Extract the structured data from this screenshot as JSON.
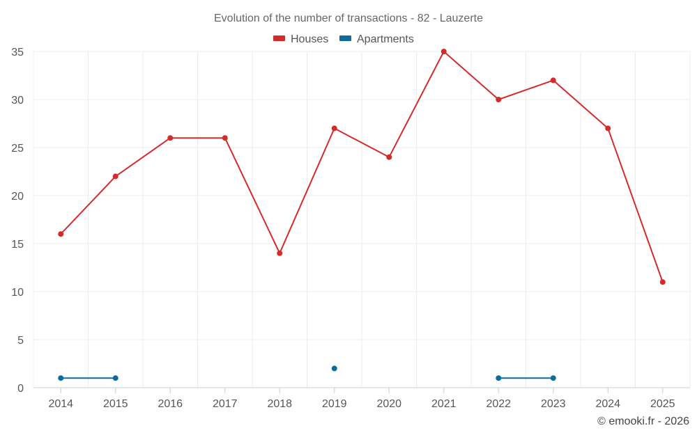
{
  "chart_data": {
    "type": "line",
    "title": "Evolution of the number of transactions - 82 - Lauzerte",
    "xlabel": "",
    "ylabel": "",
    "categories": [
      "2014",
      "2015",
      "2016",
      "2017",
      "2018",
      "2019",
      "2020",
      "2021",
      "2022",
      "2023",
      "2024",
      "2025"
    ],
    "ylim": [
      0,
      35
    ],
    "yticks": [
      0,
      5,
      10,
      15,
      20,
      25,
      30,
      35
    ],
    "grid": true,
    "legend_position": "top-center",
    "series": [
      {
        "name": "Houses",
        "color": "#d42a2a",
        "values": [
          16,
          22,
          26,
          26,
          14,
          27,
          24,
          35,
          30,
          32,
          27,
          11
        ]
      },
      {
        "name": "Apartments",
        "color": "#0f6a9e",
        "values": [
          1,
          1,
          null,
          null,
          null,
          2,
          null,
          null,
          1,
          1,
          null,
          null
        ]
      }
    ]
  },
  "credit": "© emooki.fr - 2026"
}
